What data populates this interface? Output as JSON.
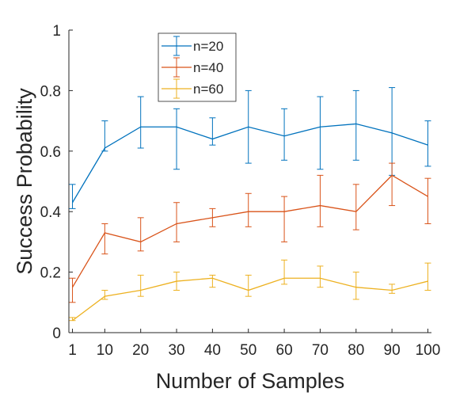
{
  "chart_data": {
    "type": "line",
    "title": "",
    "xlabel": "Number of Samples",
    "ylabel": "Success Probability",
    "x": [
      1,
      10,
      20,
      30,
      40,
      50,
      60,
      70,
      80,
      90,
      100
    ],
    "xlim": [
      0,
      101
    ],
    "ylim": [
      0,
      1
    ],
    "xticks": [
      1,
      10,
      20,
      30,
      40,
      50,
      60,
      70,
      80,
      90,
      100
    ],
    "xtick_labels": [
      "1",
      "10",
      "20",
      "30",
      "40",
      "50",
      "60",
      "70",
      "80",
      "90",
      "100"
    ],
    "yticks": [
      0,
      0.2,
      0.4,
      0.6,
      0.8,
      1
    ],
    "ytick_labels": [
      "0",
      "0.2",
      "0.4",
      "0.6",
      "0.8",
      "1"
    ],
    "grid": false,
    "legend_position": "top-left",
    "series": [
      {
        "name": "n=20",
        "color": "#0072BD",
        "values": [
          0.43,
          0.61,
          0.68,
          0.68,
          0.64,
          0.68,
          0.65,
          0.68,
          0.69,
          0.66,
          0.62
        ],
        "err_low": [
          0.41,
          0.6,
          0.61,
          0.54,
          0.62,
          0.56,
          0.57,
          0.54,
          0.57,
          0.52,
          0.55
        ],
        "err_high": [
          0.49,
          0.7,
          0.78,
          0.74,
          0.71,
          0.8,
          0.74,
          0.78,
          0.8,
          0.81,
          0.7
        ]
      },
      {
        "name": "n=40",
        "color": "#D95319",
        "values": [
          0.15,
          0.33,
          0.3,
          0.36,
          0.38,
          0.4,
          0.4,
          0.42,
          0.4,
          0.52,
          0.45
        ],
        "err_low": [
          0.1,
          0.26,
          0.27,
          0.3,
          0.35,
          0.35,
          0.3,
          0.35,
          0.34,
          0.42,
          0.36
        ],
        "err_high": [
          0.18,
          0.36,
          0.38,
          0.43,
          0.41,
          0.46,
          0.45,
          0.52,
          0.49,
          0.56,
          0.51
        ]
      },
      {
        "name": "n=60",
        "color": "#EDB120",
        "values": [
          0.04,
          0.12,
          0.14,
          0.17,
          0.18,
          0.14,
          0.18,
          0.18,
          0.15,
          0.14,
          0.17
        ],
        "err_low": [
          0.04,
          0.11,
          0.12,
          0.14,
          0.15,
          0.12,
          0.16,
          0.15,
          0.11,
          0.13,
          0.14
        ],
        "err_high": [
          0.05,
          0.14,
          0.19,
          0.2,
          0.19,
          0.19,
          0.24,
          0.22,
          0.2,
          0.16,
          0.23
        ]
      }
    ]
  }
}
